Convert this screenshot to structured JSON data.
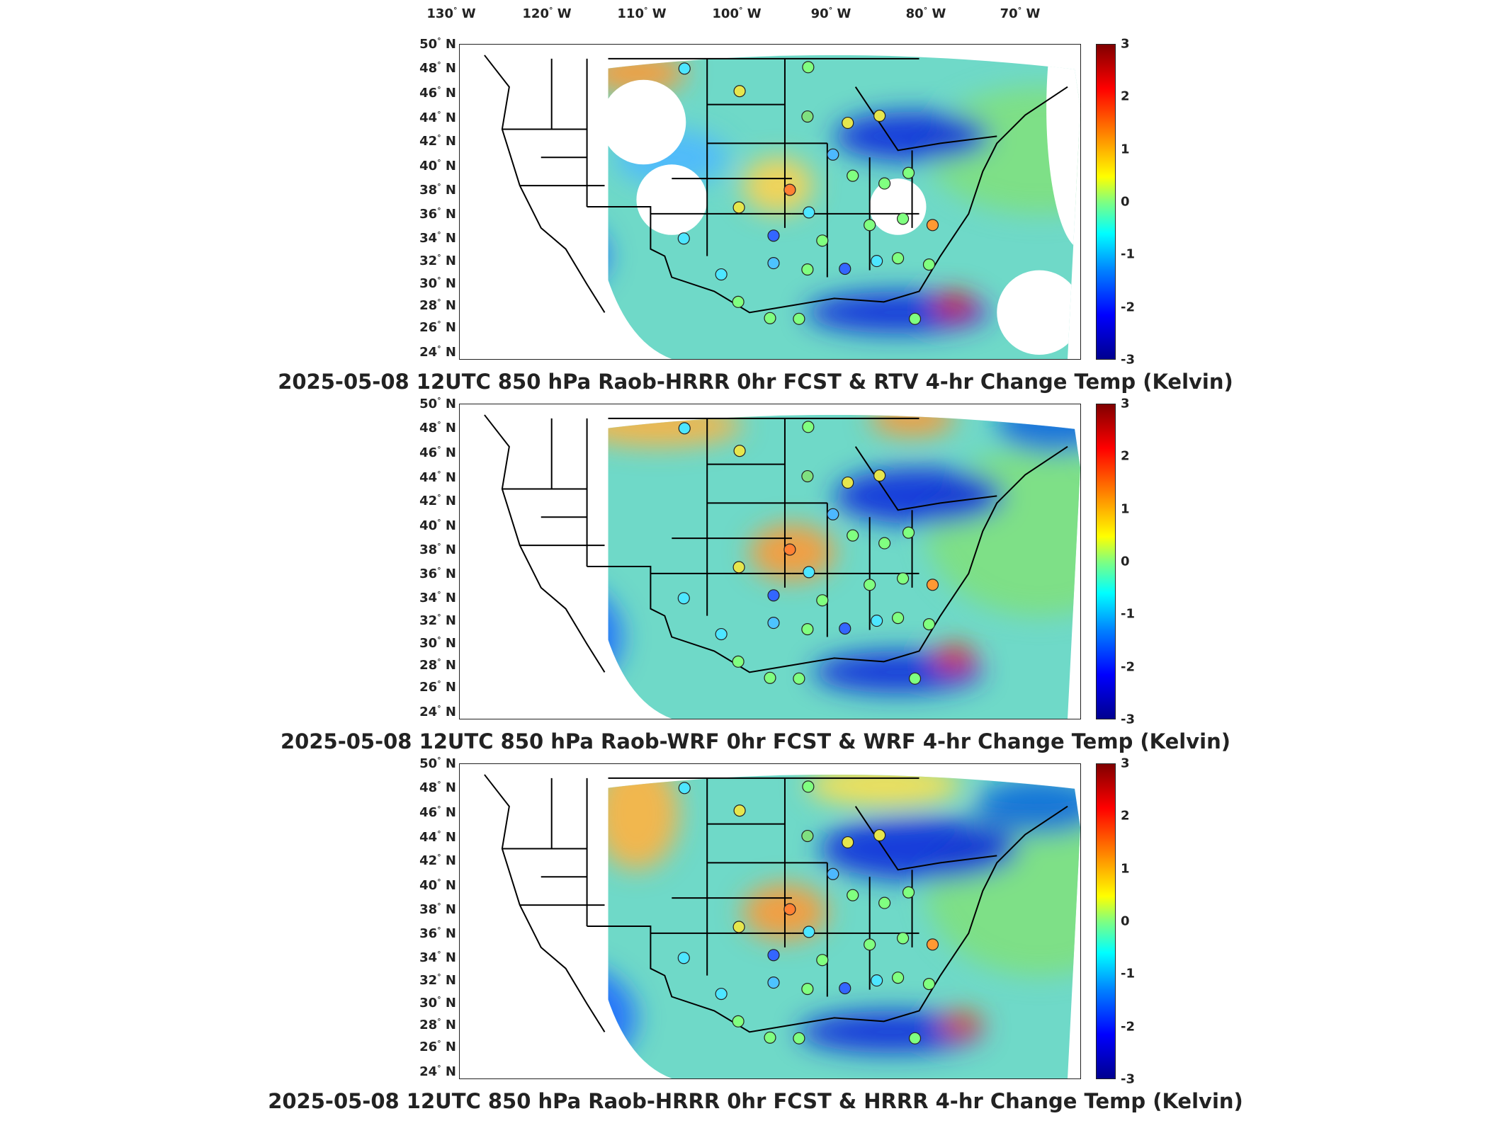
{
  "longitude_labels": [
    {
      "deg": "130",
      "hem": "W"
    },
    {
      "deg": "120",
      "hem": "W"
    },
    {
      "deg": "110",
      "hem": "W"
    },
    {
      "deg": "100",
      "hem": "W"
    },
    {
      "deg": "90",
      "hem": "W"
    },
    {
      "deg": "80",
      "hem": "W"
    },
    {
      "deg": "70",
      "hem": "W"
    }
  ],
  "latitude_labels": [
    {
      "deg": "50",
      "hem": "N"
    },
    {
      "deg": "48",
      "hem": "N"
    },
    {
      "deg": "46",
      "hem": "N"
    },
    {
      "deg": "44",
      "hem": "N"
    },
    {
      "deg": "42",
      "hem": "N"
    },
    {
      "deg": "40",
      "hem": "N"
    },
    {
      "deg": "38",
      "hem": "N"
    },
    {
      "deg": "36",
      "hem": "N"
    },
    {
      "deg": "34",
      "hem": "N"
    },
    {
      "deg": "32",
      "hem": "N"
    },
    {
      "deg": "30",
      "hem": "N"
    },
    {
      "deg": "28",
      "hem": "N"
    },
    {
      "deg": "26",
      "hem": "N"
    },
    {
      "deg": "24",
      "hem": "N"
    }
  ],
  "colorbar": {
    "ticks": [
      "3",
      "2",
      "1",
      "0",
      "-1",
      "-2",
      "-3"
    ],
    "range": [
      -3,
      3
    ],
    "colors": [
      "#00008f",
      "#0000ff",
      "#0080ff",
      "#00ffff",
      "#80ff80",
      "#ffff00",
      "#ff8000",
      "#ff0000",
      "#800000"
    ]
  },
  "panels": [
    {
      "title": "2025-05-08 12UTC 850 hPa Raob-HRRR 0hr FCST & RTV 4-hr Change Temp (Kelvin)",
      "field": "RTV 4-hr Change",
      "coverage": "partial"
    },
    {
      "title": "2025-05-08 12UTC 850 hPa Raob-WRF 0hr FCST & WRF 4-hr Change Temp (Kelvin)",
      "field": "WRF 4-hr Change",
      "coverage": "full"
    },
    {
      "title": "2025-05-08 12UTC 850 hPa Raob-HRRR 0hr FCST & HRRR 4-hr Change Temp (Kelvin)",
      "field": "HRRR 4-hr Change",
      "coverage": "full"
    }
  ]
}
